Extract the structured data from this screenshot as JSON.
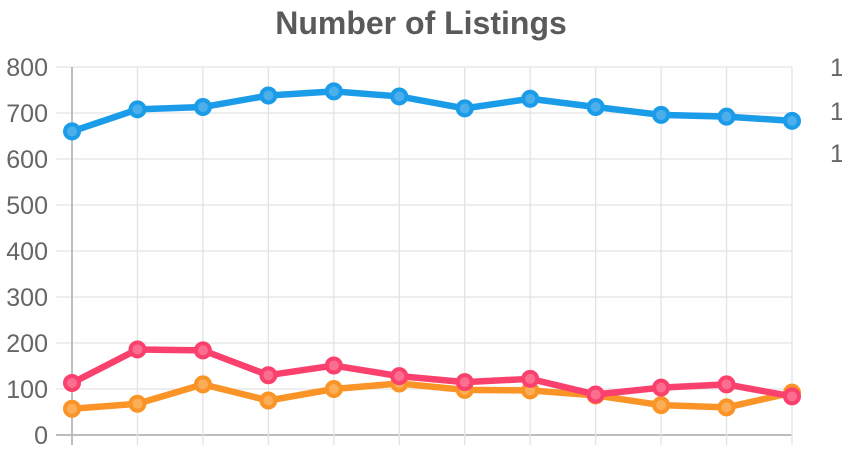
{
  "colors": {
    "background": "#ffffff",
    "grid": "#e3e3e3",
    "axis": "#b2b2b2",
    "tick_label": "#666666",
    "title_color": "#595a5c"
  },
  "chart_data": {
    "type": "line",
    "title": "Number of Listings",
    "x": [
      1,
      2,
      3,
      4,
      5,
      6,
      7,
      8,
      9,
      10,
      11,
      12
    ],
    "x_tick_labels_visible": false,
    "grid": true,
    "legend": false,
    "y_axis_left": {
      "min": 0,
      "max": 800,
      "tick_values": [
        800,
        700,
        600,
        500,
        400,
        300,
        200,
        100,
        0
      ],
      "tick_labels": [
        "800",
        "700",
        "600",
        "500",
        "400",
        "300",
        "200",
        "100",
        "0"
      ]
    },
    "y_axis_right": {
      "visible_truncated_labels": [
        "1",
        "1",
        "1"
      ]
    },
    "series": [
      {
        "name": "blue",
        "color": "#1b9ce9",
        "point_fill": "#4daeec",
        "values": [
          660,
          708,
          713,
          738,
          747,
          736,
          710,
          731,
          713,
          696,
          692,
          683
        ]
      },
      {
        "name": "pink",
        "color": "#fa416e",
        "point_fill": "#fb6e8f",
        "values": [
          113,
          186,
          184,
          130,
          151,
          128,
          115,
          122,
          88,
          103,
          110,
          84
        ]
      },
      {
        "name": "orange",
        "color": "#fa9427",
        "point_fill": "#fbae57",
        "values": [
          57,
          68,
          110,
          75,
          100,
          112,
          98,
          97,
          86,
          65,
          60,
          92
        ]
      }
    ]
  }
}
